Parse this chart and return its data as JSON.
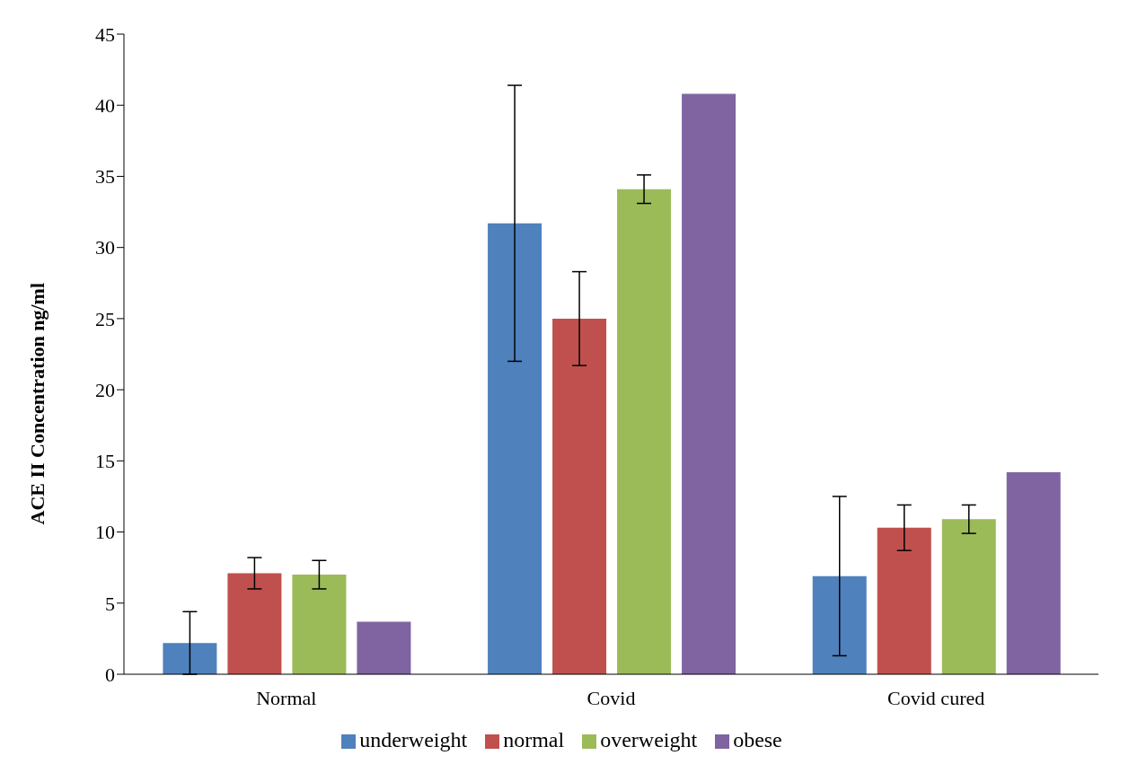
{
  "chart_data": {
    "type": "bar",
    "ylabel": "ACE II Concentration ng/ml",
    "categories": [
      "Normal",
      "Covid",
      "Covid cured"
    ],
    "series": [
      {
        "name": "underweight",
        "color": "#4f81bd",
        "values": [
          2.2,
          31.7,
          6.9
        ],
        "errors": [
          2.2,
          9.7,
          5.6
        ]
      },
      {
        "name": "normal",
        "color": "#c0504d",
        "values": [
          7.1,
          25.0,
          10.3
        ],
        "errors": [
          1.1,
          3.3,
          1.6
        ]
      },
      {
        "name": "overweight",
        "color": "#9bbb59",
        "values": [
          7.0,
          34.1,
          10.9
        ],
        "errors": [
          1.0,
          1.0,
          1.0
        ]
      },
      {
        "name": "obese",
        "color": "#8064a2",
        "values": [
          3.7,
          40.8,
          14.2
        ],
        "errors": [
          null,
          null,
          null
        ]
      }
    ],
    "ylim": [
      0,
      45
    ],
    "yticks": [
      0,
      5,
      10,
      15,
      20,
      25,
      30,
      35,
      40,
      45
    ],
    "grid": false,
    "legend": "bottom"
  }
}
